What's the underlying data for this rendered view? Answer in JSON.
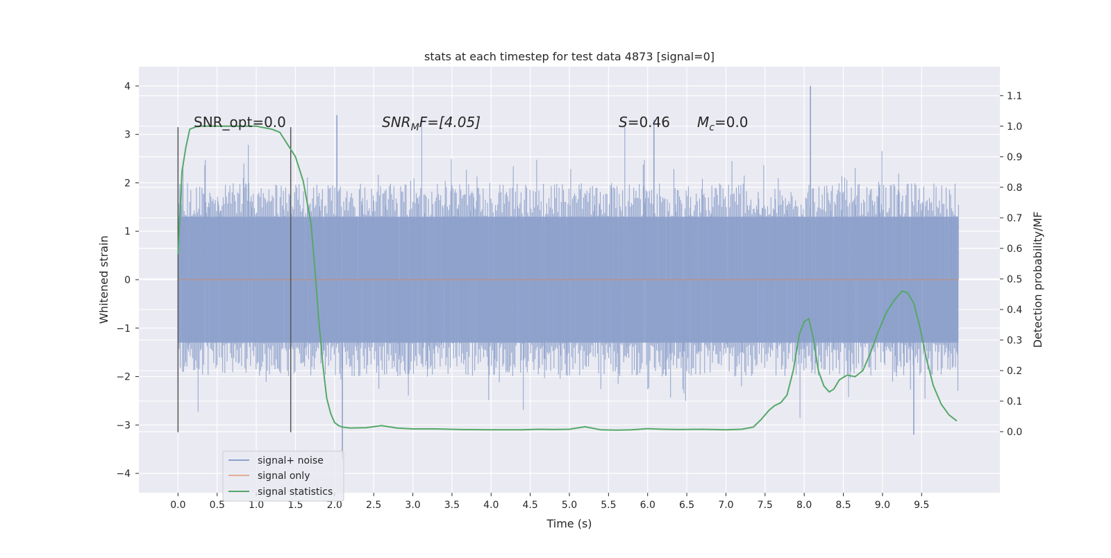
{
  "chart_data": {
    "type": "line",
    "title": "stats at each timestep for test data 4873 [signal=0]",
    "xlabel": "Time (s)",
    "ylabel_left": "Whitened strain",
    "ylabel_right": "Detection probability/MF",
    "xlim": [
      -0.5,
      10.5
    ],
    "ylim_left": [
      -4.4,
      4.4
    ],
    "ylim_right": [
      -0.2,
      1.195
    ],
    "x_ticks": [
      "0.0",
      "0.5",
      "1.0",
      "1.5",
      "2.0",
      "2.5",
      "3.0",
      "3.5",
      "4.0",
      "4.5",
      "5.0",
      "5.5",
      "6.0",
      "6.5",
      "7.0",
      "7.5",
      "8.0",
      "8.5",
      "9.0",
      "9.5"
    ],
    "y_ticks_left": [
      "4",
      "3",
      "2",
      "1",
      "0",
      "−1",
      "−2",
      "−3",
      "−4"
    ],
    "y_ticks_right": [
      "1.1",
      "1.0",
      "0.9",
      "0.8",
      "0.7",
      "0.6",
      "0.5",
      "0.4",
      "0.3",
      "0.2",
      "0.1",
      "0.0"
    ],
    "grid": true,
    "legend_position": "lower-left",
    "annotations": {
      "snr_opt": "SNR_opt=0.0",
      "snr_mf_main": "SNR",
      "snr_mf_sub": "M",
      "snr_mf_rest": "F=[4.05]",
      "s_main": "S",
      "s_rest": "=0.46",
      "mc_main": "M",
      "mc_sub": "c",
      "mc_rest": "=0.0"
    },
    "window_markers_x": [
      0.0,
      1.44
    ],
    "series": [
      {
        "name": "signal+ noise",
        "color": "#8da1cb",
        "axis": "left",
        "x_range": [
          0.0,
          9.97
        ],
        "core_band": [
          -1.3,
          1.3
        ],
        "notable_peaks": [
          [
            2.03,
            3.4
          ],
          [
            8.08,
            4.0
          ],
          [
            6.08,
            3.3
          ],
          [
            9.4,
            -3.2
          ],
          [
            2.1,
            -3.7
          ]
        ]
      },
      {
        "name": "signal only",
        "color": "#dd8452",
        "axis": "left",
        "x": [
          0.0,
          9.97
        ],
        "y": [
          0.0,
          0.0
        ]
      },
      {
        "name": "signal statistics",
        "color": "#55a868",
        "axis": "right",
        "x": [
          0.0,
          0.05,
          0.1,
          0.15,
          0.25,
          0.4,
          0.7,
          1.0,
          1.2,
          1.3,
          1.4,
          1.5,
          1.6,
          1.7,
          1.75,
          1.8,
          1.85,
          1.9,
          1.95,
          2.0,
          2.05,
          2.1,
          2.2,
          2.4,
          2.6,
          2.8,
          3.0,
          3.3,
          3.6,
          4.0,
          4.4,
          4.6,
          4.8,
          5.0,
          5.2,
          5.4,
          5.6,
          5.8,
          6.0,
          6.2,
          6.4,
          6.7,
          7.0,
          7.2,
          7.35,
          7.45,
          7.55,
          7.62,
          7.7,
          7.78,
          7.86,
          7.94,
          8.0,
          8.06,
          8.12,
          8.18,
          8.25,
          8.32,
          8.38,
          8.45,
          8.55,
          8.65,
          8.75,
          8.85,
          8.95,
          9.05,
          9.15,
          9.25,
          9.32,
          9.4,
          9.48,
          9.56,
          9.65,
          9.75,
          9.85,
          9.95
        ],
        "y": [
          0.58,
          0.85,
          0.93,
          0.99,
          1.0,
          1.0,
          1.0,
          1.0,
          0.99,
          0.98,
          0.94,
          0.9,
          0.82,
          0.68,
          0.53,
          0.36,
          0.22,
          0.11,
          0.06,
          0.03,
          0.02,
          0.015,
          0.012,
          0.013,
          0.02,
          0.012,
          0.009,
          0.009,
          0.007,
          0.006,
          0.006,
          0.008,
          0.007,
          0.008,
          0.016,
          0.006,
          0.005,
          0.006,
          0.01,
          0.008,
          0.007,
          0.008,
          0.006,
          0.008,
          0.015,
          0.04,
          0.07,
          0.085,
          0.095,
          0.12,
          0.2,
          0.32,
          0.36,
          0.37,
          0.3,
          0.2,
          0.15,
          0.13,
          0.14,
          0.17,
          0.185,
          0.18,
          0.2,
          0.26,
          0.33,
          0.39,
          0.43,
          0.46,
          0.455,
          0.42,
          0.34,
          0.24,
          0.15,
          0.09,
          0.055,
          0.035
        ]
      }
    ]
  }
}
